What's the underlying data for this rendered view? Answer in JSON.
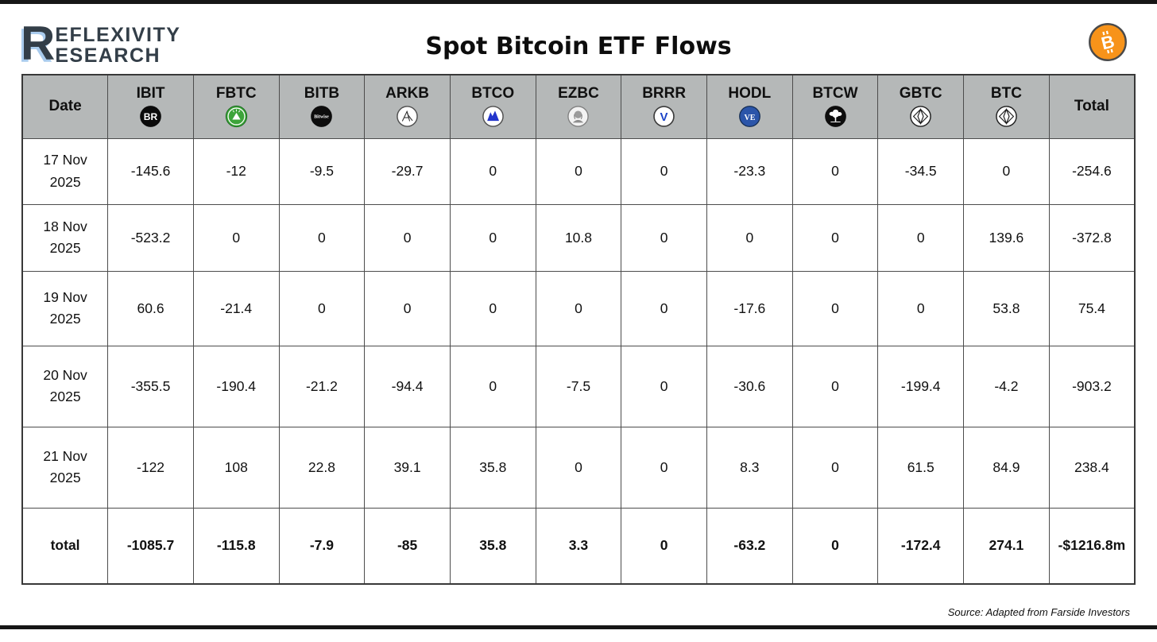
{
  "masthead": {
    "logo_r": "R",
    "logo_line1": "EFLEXIVITY",
    "logo_line2": "ESEARCH",
    "title": "Spot Bitcoin ETF Flows"
  },
  "colors": {
    "bitcoin_orange": "#F7931A",
    "fidelity_green": "#3DA43A",
    "invesco_blue": "#2335CC",
    "valkyrie_blue": "#1C44C8",
    "vaneck_blue": "#2B55A9",
    "header_bg": "#B5B8B8",
    "grid_border": "#4C4C4C",
    "logo_slate": "#333E48",
    "logo_shadow_blue": "#A9CBED"
  },
  "column_icons": [
    null,
    "ibit-blackrock-icon",
    "fbtc-fidelity-icon",
    "bitb-bitwise-icon",
    "arkb-ark-icon",
    "btco-invesco-icon",
    "ezbc-franklin-icon",
    "brrr-valkyrie-icon",
    "hodl-vaneck-icon",
    "btcw-wisdomtree-icon",
    "gbtc-grayscale-icon",
    "btc-grayscale-icon",
    null
  ],
  "chart_data": {
    "type": "table",
    "title": "Spot Bitcoin ETF Flows",
    "columns": [
      "Date",
      "IBIT",
      "FBTC",
      "BITB",
      "ARKB",
      "BTCO",
      "EZBC",
      "BRRR",
      "HODL",
      "BTCW",
      "GBTC",
      "BTC",
      "Total"
    ],
    "rows": [
      [
        "17 Nov 2025",
        -145.6,
        -12,
        -9.5,
        -29.7,
        0,
        0,
        0,
        -23.3,
        0,
        -34.5,
        0,
        -254.6
      ],
      [
        "18 Nov 2025",
        -523.2,
        0,
        0,
        0,
        0,
        10.8,
        0,
        0,
        0,
        0,
        139.6,
        -372.8
      ],
      [
        "19 Nov 2025",
        60.6,
        -21.4,
        0,
        0,
        0,
        0,
        0,
        -17.6,
        0,
        0,
        53.8,
        75.4
      ],
      [
        "20 Nov 2025",
        -355.5,
        -190.4,
        -21.2,
        -94.4,
        0,
        -7.5,
        0,
        -30.6,
        0,
        -199.4,
        -4.2,
        -903.2
      ],
      [
        "21 Nov 2025",
        -122,
        108,
        22.8,
        39.1,
        35.8,
        0,
        0,
        8.3,
        0,
        61.5,
        84.9,
        238.4
      ],
      [
        "total",
        -1085.7,
        -115.8,
        -7.9,
        -85,
        35.8,
        3.3,
        0,
        -63.2,
        0,
        -172.4,
        274.1,
        "-$1216.8m"
      ]
    ]
  },
  "footer": {
    "source": "Source: Adapted from Farside Investors"
  }
}
